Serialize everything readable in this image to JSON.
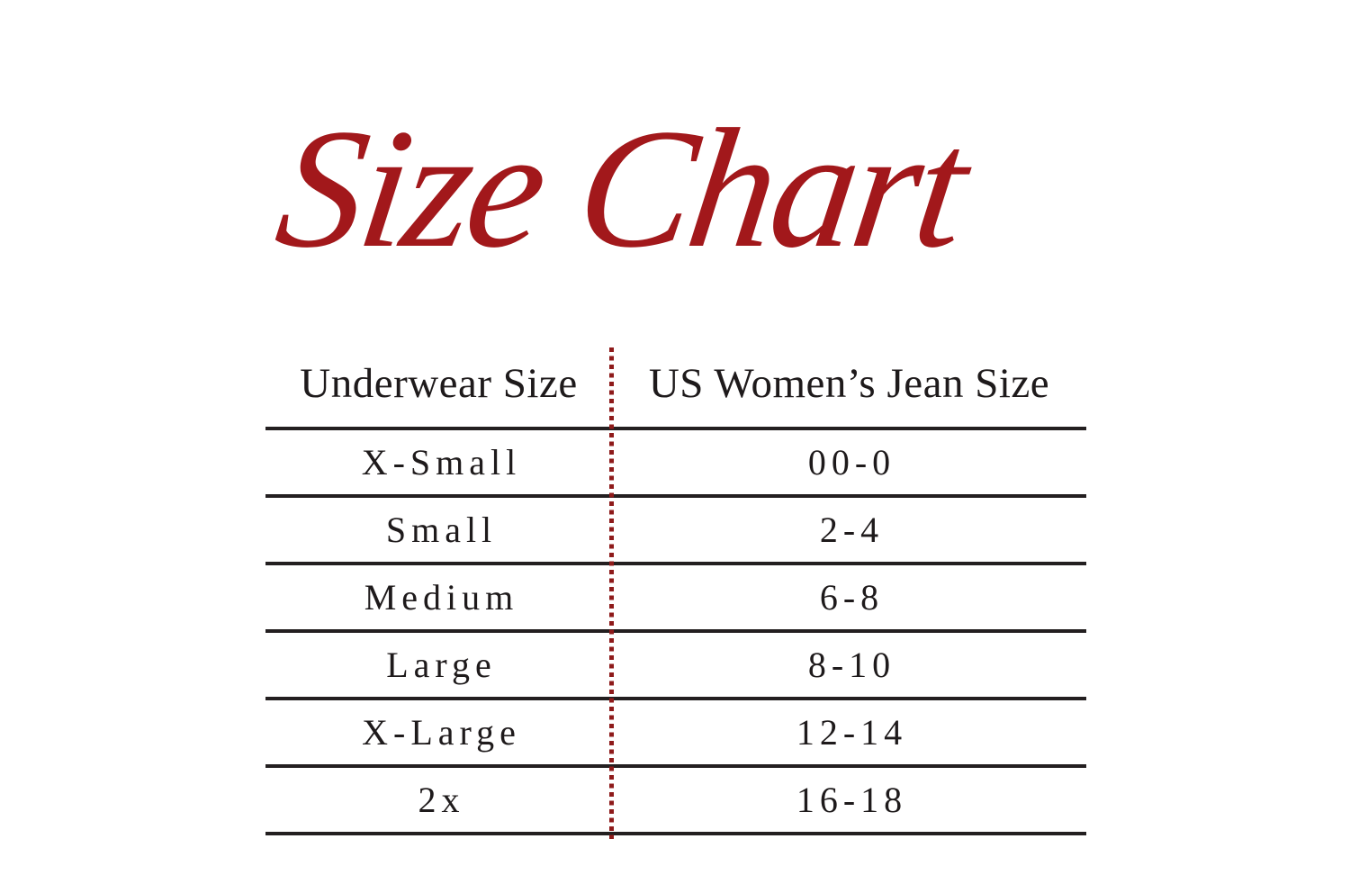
{
  "title": {
    "text": "Size Chart"
  },
  "table": {
    "headers": [
      "Underwear Size",
      "US Women’s Jean Size"
    ],
    "rows": [
      {
        "underwear_size": "X-Small",
        "jean_size": "00-0"
      },
      {
        "underwear_size": "Small",
        "jean_size": "2-4"
      },
      {
        "underwear_size": "Medium",
        "jean_size": "6-8"
      },
      {
        "underwear_size": "Large",
        "jean_size": "8-10"
      },
      {
        "underwear_size": "X-Large",
        "jean_size": "12-14"
      },
      {
        "underwear_size": "2x",
        "jean_size": "16-18"
      }
    ]
  },
  "colors": {
    "title_red": "#A2181B",
    "divider_dot_red": "#8E1A1A",
    "rule_black": "#231F20",
    "text_black": "#1E1A1B",
    "background": "#FFFFFF"
  },
  "chart_data": {
    "type": "table",
    "title": "Size Chart",
    "columns": [
      "Underwear Size",
      "US Women’s Jean Size"
    ],
    "rows": [
      [
        "X-Small",
        "00-0"
      ],
      [
        "Small",
        "2-4"
      ],
      [
        "Medium",
        "6-8"
      ],
      [
        "Large",
        "8-10"
      ],
      [
        "X-Large",
        "12-14"
      ],
      [
        "2x",
        "16-18"
      ]
    ],
    "layout": {
      "column_divider": "red dotted vertical line",
      "row_rules": "horizontal black lines between all rows",
      "alignment": "center"
    }
  }
}
